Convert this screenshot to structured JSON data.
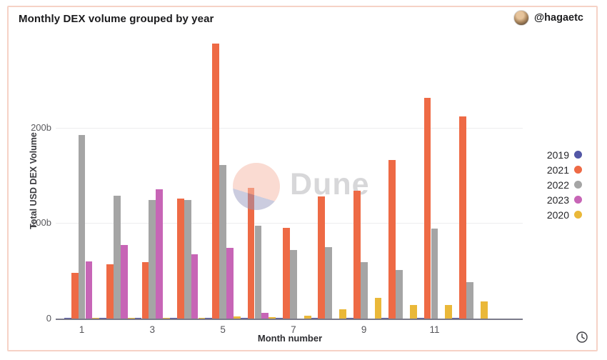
{
  "header": {
    "title": "Monthly DEX volume grouped by year",
    "author": "@hagaetc"
  },
  "chart_data": {
    "type": "bar",
    "title": "Monthly DEX volume grouped by year",
    "xlabel": "Month number",
    "ylabel": "Total USD DEX Volume",
    "unit": "billions USD",
    "x": [
      1,
      2,
      3,
      4,
      5,
      6,
      7,
      8,
      9,
      10,
      11,
      12
    ],
    "xticks": [
      1,
      3,
      5,
      7,
      9,
      11
    ],
    "yticks": [
      {
        "value": 0,
        "label": "0"
      },
      {
        "value": 100,
        "label": "100b"
      },
      {
        "value": 200,
        "label": "200b"
      }
    ],
    "ylim": [
      0,
      292
    ],
    "grid": true,
    "legend_position": "right",
    "series": [
      {
        "name": "2019",
        "color": "#5357a6",
        "values": [
          1,
          1,
          1,
          1,
          1,
          1,
          1,
          1,
          1,
          1,
          1,
          1
        ]
      },
      {
        "name": "2021",
        "color": "#ee6a45",
        "values": [
          48,
          57,
          59,
          126,
          288,
          137,
          95,
          128,
          134,
          166,
          231,
          212
        ]
      },
      {
        "name": "2022",
        "color": "#a5a5a5",
        "values": [
          192,
          129,
          124,
          124,
          161,
          97,
          72,
          75,
          59,
          51,
          94,
          38
        ]
      },
      {
        "name": "2023",
        "color": "#c765b6",
        "values": [
          60,
          77,
          135,
          67,
          74,
          6,
          null,
          null,
          null,
          null,
          null,
          null
        ]
      },
      {
        "name": "2020",
        "color": "#eab839",
        "values": [
          1,
          1,
          1,
          1,
          2,
          1.5,
          3,
          10,
          22,
          14,
          14,
          18
        ]
      }
    ]
  },
  "watermark": {
    "text": "Dune"
  },
  "icons": {
    "clock": "view last refresh time"
  }
}
